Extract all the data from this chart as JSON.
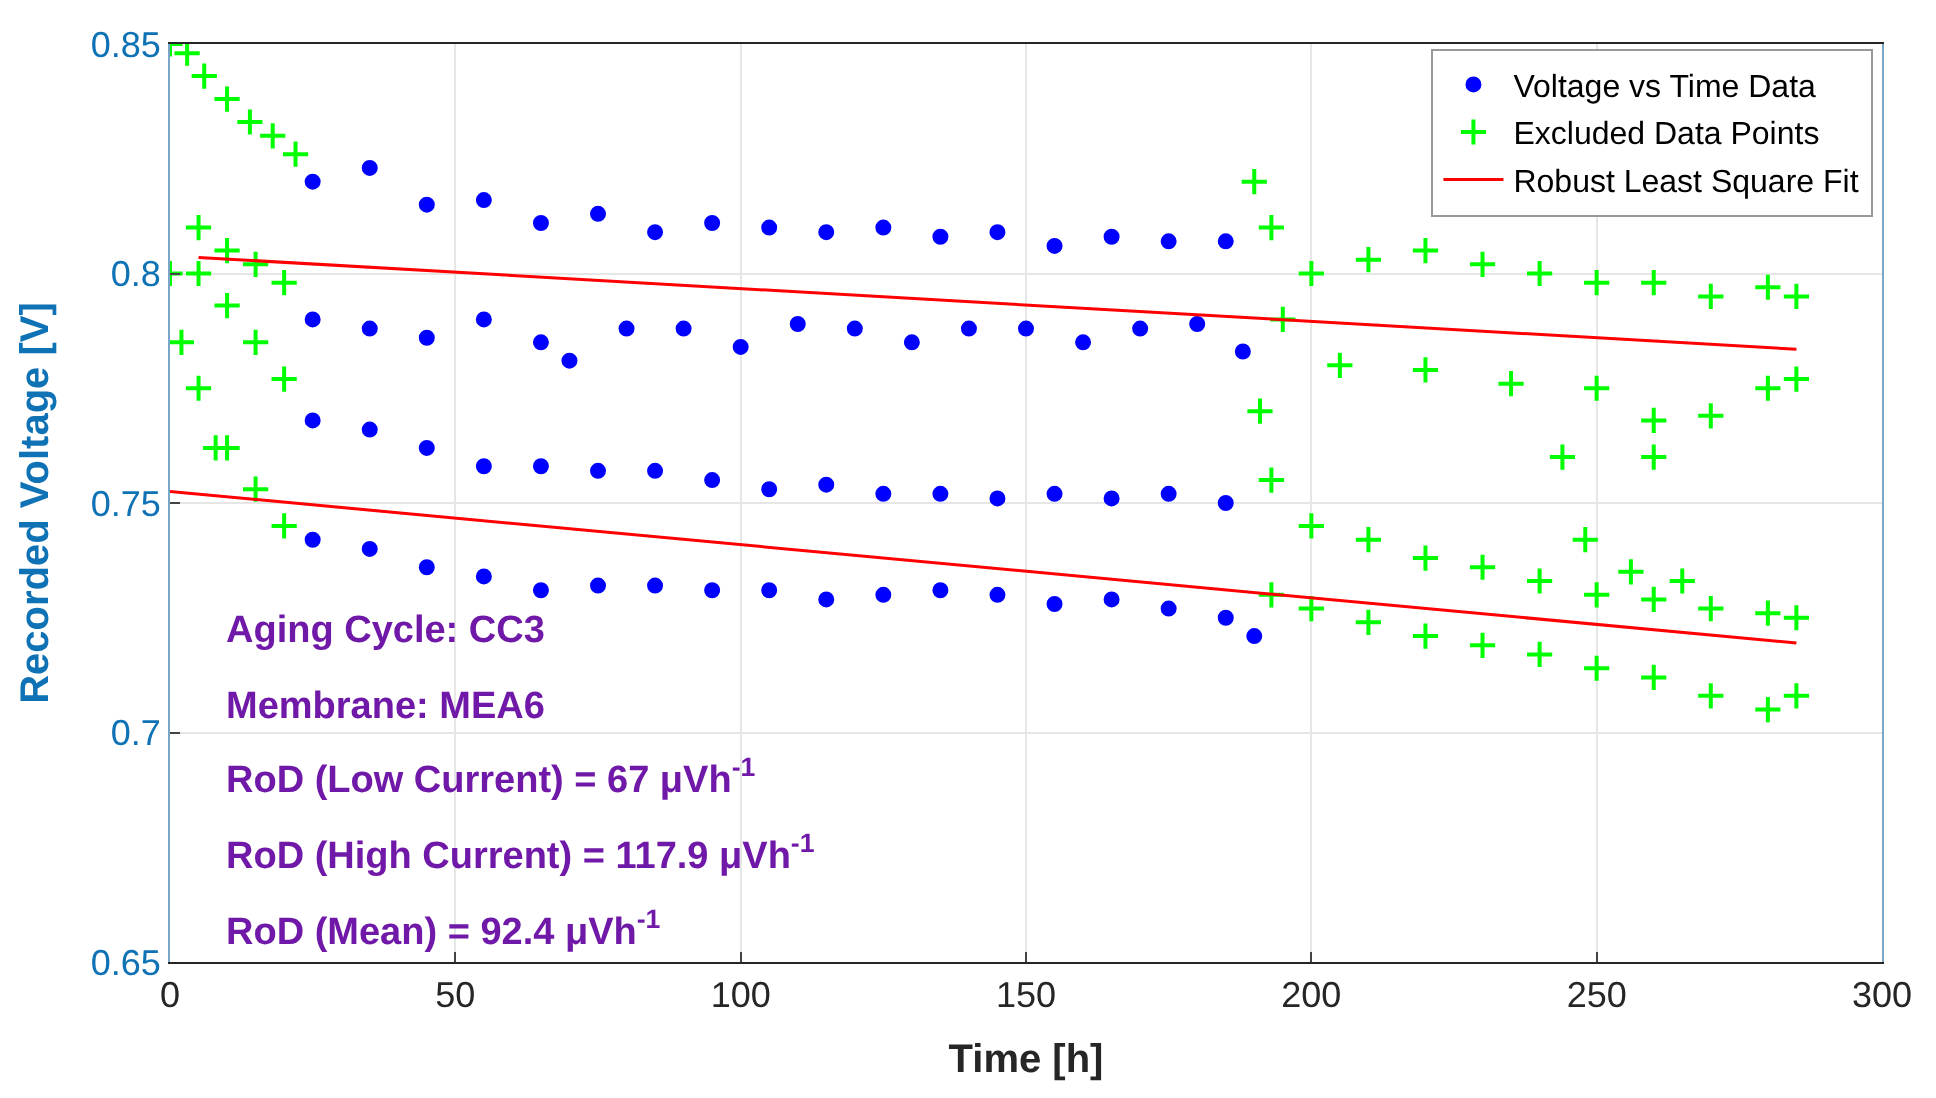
{
  "chart_data": {
    "type": "scatter",
    "xlabel": "Time [h]",
    "ylabel": "Recorded Voltage [V]",
    "xlim": [
      0,
      300
    ],
    "xticks": [
      0,
      50,
      100,
      150,
      200,
      250,
      300
    ],
    "ylim": [
      0.65,
      0.85
    ],
    "yticks": [
      0.65,
      0.7,
      0.75,
      0.8,
      0.85
    ],
    "grid": true,
    "legend": "top right",
    "series": [
      {
        "name": "Voltage vs Time Data",
        "color": "#0000ff",
        "marker": "circle",
        "x": [
          25,
          35,
          45,
          55,
          65,
          75,
          85,
          95,
          105,
          115,
          125,
          135,
          145,
          155,
          165,
          175,
          185,
          25,
          35,
          45,
          55,
          65,
          70,
          80,
          90,
          100,
          110,
          120,
          130,
          140,
          150,
          160,
          170,
          180,
          188,
          25,
          35,
          45,
          55,
          65,
          75,
          85,
          95,
          105,
          115,
          125,
          135,
          145,
          155,
          165,
          175,
          185,
          25,
          35,
          45,
          55,
          65,
          75,
          85,
          95,
          105,
          115,
          125,
          135,
          145,
          155,
          165,
          175,
          185,
          190
        ],
        "values": [
          0.82,
          0.823,
          0.815,
          0.816,
          0.811,
          0.813,
          0.809,
          0.811,
          0.81,
          0.809,
          0.81,
          0.808,
          0.809,
          0.806,
          0.808,
          0.807,
          0.807,
          0.79,
          0.788,
          0.786,
          0.79,
          0.785,
          0.781,
          0.788,
          0.788,
          0.784,
          0.789,
          0.788,
          0.785,
          0.788,
          0.788,
          0.785,
          0.788,
          0.789,
          0.783,
          0.768,
          0.766,
          0.762,
          0.758,
          0.758,
          0.757,
          0.757,
          0.755,
          0.753,
          0.754,
          0.752,
          0.752,
          0.751,
          0.752,
          0.751,
          0.752,
          0.75,
          0.742,
          0.74,
          0.736,
          0.734,
          0.731,
          0.732,
          0.732,
          0.731,
          0.731,
          0.729,
          0.73,
          0.731,
          0.73,
          0.728,
          0.729,
          0.727,
          0.725,
          0.721
        ]
      },
      {
        "name": "Excluded Data Points",
        "color": "#00ff00",
        "marker": "cross",
        "x": [
          0,
          3,
          6,
          10,
          14,
          18,
          22,
          5,
          10,
          15,
          20,
          5,
          10,
          15,
          20,
          0,
          2,
          5,
          10,
          15,
          20,
          8,
          190,
          193,
          200,
          210,
          220,
          230,
          240,
          250,
          260,
          270,
          280,
          285,
          195,
          205,
          220,
          235,
          250,
          260,
          270,
          280,
          285,
          244,
          260,
          248,
          256,
          265,
          191,
          193,
          200,
          210,
          220,
          230,
          240,
          250,
          260,
          270,
          280,
          285,
          193,
          200,
          210,
          220,
          230,
          240,
          250,
          260,
          270,
          280,
          285
        ],
        "values": [
          0.85,
          0.848,
          0.843,
          0.838,
          0.833,
          0.83,
          0.826,
          0.81,
          0.805,
          0.802,
          0.798,
          0.8,
          0.793,
          0.785,
          0.777,
          0.8,
          0.785,
          0.775,
          0.762,
          0.753,
          0.745,
          0.762,
          0.82,
          0.81,
          0.8,
          0.803,
          0.805,
          0.802,
          0.8,
          0.798,
          0.798,
          0.795,
          0.797,
          0.795,
          0.79,
          0.78,
          0.779,
          0.776,
          0.775,
          0.768,
          0.769,
          0.775,
          0.777,
          0.76,
          0.76,
          0.742,
          0.735,
          0.733,
          0.77,
          0.755,
          0.745,
          0.742,
          0.738,
          0.736,
          0.733,
          0.73,
          0.729,
          0.727,
          0.726,
          0.725,
          0.73,
          0.727,
          0.724,
          0.721,
          0.719,
          0.717,
          0.714,
          0.712,
          0.708,
          0.705,
          0.708
        ]
      },
      {
        "name": "Robust Least Square Fit",
        "color": "#ff0000",
        "type": "line",
        "marker": "none",
        "line_style": "solid",
        "x": [
          5,
          285
        ],
        "values": [
          0.8035,
          0.7835
        ]
      },
      {
        "color": "#ff0000",
        "type": "line",
        "marker": "none",
        "line_style": "solid",
        "x": [
          0,
          285
        ],
        "values": [
          0.7525,
          0.7195
        ]
      }
    ],
    "annotations": [
      "Aging Cycle: CC3",
      "Membrane: MEA6",
      "RoD (Low Current) = 67 μVh$^{-1}$",
      "RoD (High Current) = 117.9 μVh$^{-1}$",
      "RoD (Mean) = 92.4 μVh$^{-1}$"
    ]
  }
}
